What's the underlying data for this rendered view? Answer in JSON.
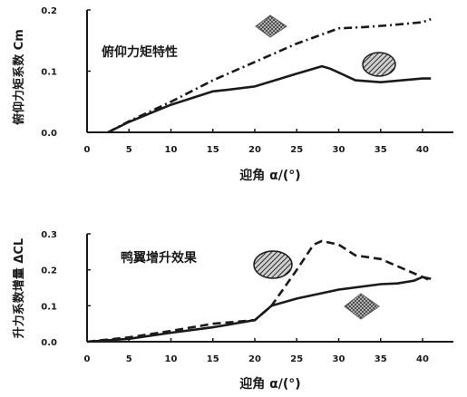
{
  "chart_data": [
    {
      "type": "line",
      "annotation": "俯仰力矩特性",
      "xlabel": "迎角 α/(°)",
      "ylabel": "俯仰力矩系数 Cm",
      "xlim": [
        0,
        45
      ],
      "ylim": [
        0.0,
        0.2
      ],
      "xticks": [
        "0",
        "5",
        "10",
        "15",
        "20",
        "25",
        "30",
        "35",
        "40"
      ],
      "yticks": [
        "0.0",
        "0.1",
        "0.2"
      ],
      "grid": false,
      "series": [
        {
          "style": "solid",
          "marker": "ellipse",
          "x": [
            2.5,
            5,
            10,
            15,
            17,
            20,
            25,
            28,
            29,
            32,
            35,
            40,
            41
          ],
          "y": [
            0.0,
            0.017,
            0.045,
            0.067,
            0.07,
            0.075,
            0.096,
            0.108,
            0.104,
            0.085,
            0.082,
            0.088,
            0.088
          ]
        },
        {
          "style": "dashdot",
          "marker": "diamond",
          "x": [
            2.5,
            5,
            10,
            15,
            20,
            25,
            30,
            33,
            36,
            40,
            41
          ],
          "y": [
            0.0,
            0.018,
            0.05,
            0.085,
            0.115,
            0.145,
            0.17,
            0.172,
            0.175,
            0.18,
            0.185
          ]
        }
      ]
    },
    {
      "type": "line",
      "annotation": "鸭翼增升效果",
      "xlabel": "迎角 α/(°)",
      "ylabel": "升力系数增量 ΔCL",
      "xlim": [
        0,
        45
      ],
      "ylim": [
        0.0,
        0.3
      ],
      "xticks": [
        "0",
        "5",
        "10",
        "15",
        "20",
        "25",
        "30",
        "35",
        "40"
      ],
      "yticks": [
        "0.0",
        "0.1",
        "0.2",
        "0.3"
      ],
      "grid": false,
      "series": [
        {
          "style": "dash",
          "marker": "ellipse",
          "x": [
            0,
            5,
            10,
            15,
            20,
            22,
            25,
            27,
            28,
            30,
            32,
            35,
            40,
            41
          ],
          "y": [
            0.0,
            0.012,
            0.03,
            0.05,
            0.06,
            0.1,
            0.2,
            0.27,
            0.28,
            0.27,
            0.24,
            0.23,
            0.18,
            0.17
          ]
        },
        {
          "style": "solid",
          "marker": "diamond",
          "x": [
            0,
            5,
            10,
            15,
            20,
            22,
            25,
            30,
            35,
            37,
            39,
            40,
            41
          ],
          "y": [
            0.0,
            0.008,
            0.025,
            0.04,
            0.06,
            0.1,
            0.12,
            0.145,
            0.16,
            0.162,
            0.17,
            0.18,
            0.175
          ]
        }
      ]
    }
  ]
}
